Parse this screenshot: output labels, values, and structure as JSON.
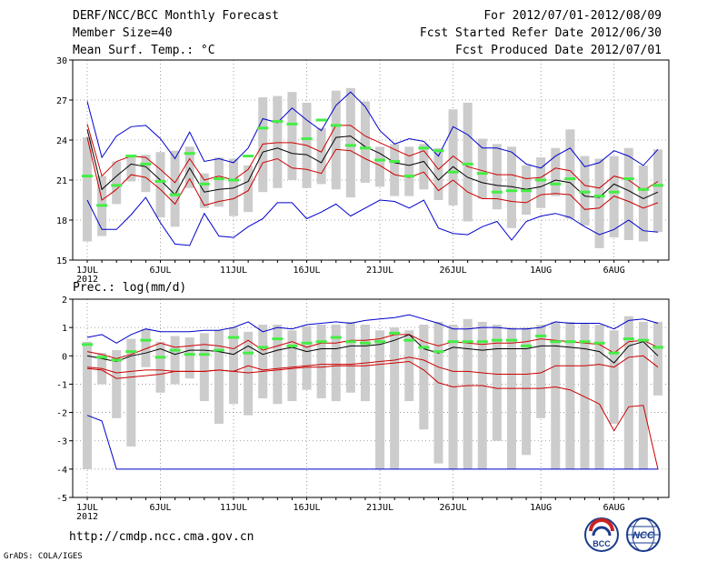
{
  "header": {
    "title": "DERF/NCC/BCC Monthly Forecast",
    "member_size": "Member Size=40",
    "variable": "Mean Surf. Temp.: °C",
    "period": "For 2012/07/01-2012/08/09",
    "fcst_started": "Fcst Started Refer Date 2012/06/30",
    "fcst_produced": "Fcst Produced Date 2012/07/01"
  },
  "footer": {
    "url": "http://cmdp.ncc.cma.gov.cn",
    "credit": "GrADS: COLA/IGES"
  },
  "logos": [
    {
      "name": "bcc-logo",
      "text": "BCC"
    },
    {
      "name": "ncc-logo",
      "text": "NCC"
    }
  ],
  "colors": {
    "box": "#cccccc",
    "envelope": "#0000cc",
    "spread": "#cc0000",
    "mean": "#000000",
    "obs": "#44ee44",
    "grid": "#888888"
  },
  "chart_data": [
    {
      "name": "temperature",
      "type": "box-envelope",
      "ylabel": "Mean Surf. Temp.: °C",
      "ylim": [
        15,
        30
      ],
      "yticks": [
        15,
        18,
        21,
        24,
        27,
        30
      ],
      "ytick_labels": [
        "15",
        "18",
        "21",
        "24",
        "27",
        "30"
      ],
      "x_days": 40,
      "xticks": [
        1,
        6,
        11,
        16,
        21,
        26,
        32,
        37
      ],
      "xtick_labels": [
        "1JUL",
        "6JUL",
        "11JUL",
        "16JUL",
        "21JUL",
        "26JUL",
        "1AUG",
        "6AUG"
      ],
      "year_label": "2012",
      "series": {
        "max": [
          26.9,
          22.7,
          24.3,
          25,
          25.1,
          24.1,
          22.6,
          24.6,
          22.4,
          22.6,
          22.3,
          23.4,
          25.6,
          25.3,
          26.4,
          25.5,
          24.7,
          26.6,
          27.6,
          26.5,
          24.7,
          23.7,
          24.1,
          23.9,
          22.8,
          25.0,
          24.4,
          23.4,
          23.4,
          23.1,
          22.2,
          21.9,
          22.8,
          23.4,
          22.0,
          22.3,
          23.2,
          22.8,
          22.1,
          23.3
        ],
        "upper": [
          25.2,
          21.3,
          22.4,
          22.8,
          22.7,
          21.8,
          20.8,
          22.6,
          21.0,
          21.3,
          21.0,
          21.8,
          23.7,
          23.8,
          23.8,
          23.6,
          23.1,
          25.1,
          25.1,
          24.3,
          23.8,
          23.3,
          22.8,
          23.2,
          21.8,
          22.8,
          22.0,
          21.7,
          21.4,
          21.4,
          21.1,
          21.2,
          21.9,
          21.7,
          20.6,
          20.4,
          21.3,
          21.0,
          20.2,
          20.9
        ],
        "mean": [
          24.8,
          20.3,
          21.3,
          22.2,
          22.0,
          21.0,
          19.9,
          21.9,
          20.1,
          20.3,
          20.4,
          20.9,
          23.1,
          23.4,
          23.0,
          22.9,
          22.3,
          24.2,
          24.3,
          23.5,
          23.0,
          22.3,
          22.1,
          22.4,
          21.0,
          22.0,
          21.2,
          20.8,
          20.6,
          20.5,
          20.3,
          20.5,
          21.0,
          20.8,
          19.8,
          19.7,
          20.7,
          20.2,
          19.6,
          20.1
        ],
        "lower": [
          24.2,
          19.5,
          20.3,
          21.4,
          21.2,
          20.3,
          19.2,
          21.1,
          19.1,
          19.4,
          19.6,
          20.2,
          22.3,
          22.6,
          21.9,
          21.8,
          21.5,
          23.3,
          23.2,
          22.6,
          22.1,
          21.4,
          21.2,
          21.6,
          20.2,
          21.0,
          20.1,
          19.6,
          19.6,
          19.4,
          19.3,
          19.9,
          20.0,
          19.9,
          18.8,
          18.9,
          19.8,
          19.4,
          18.9,
          19.3
        ],
        "min": [
          19.5,
          17.3,
          17.3,
          18.4,
          19.7,
          17.8,
          16.2,
          16.1,
          18.5,
          16.8,
          16.7,
          17.5,
          18.1,
          19.3,
          19.3,
          18.1,
          18.6,
          19.2,
          18.3,
          18.9,
          19.5,
          19.4,
          18.9,
          19.5,
          17.4,
          17.0,
          16.9,
          17.5,
          17.9,
          16.5,
          17.9,
          18.3,
          18.5,
          18.2,
          17.5,
          16.9,
          17.3,
          18.0,
          17.2,
          17.1
        ],
        "box_top": [
          24.2,
          21.3,
          22.4,
          22.9,
          22.9,
          23.1,
          23.2,
          23.5,
          21.5,
          22.7,
          22.6,
          22.1,
          27.2,
          27.3,
          27.6,
          26.8,
          24.9,
          27.7,
          27.9,
          26.9,
          23.5,
          23.7,
          23.5,
          23.7,
          23.4,
          26.3,
          26.8,
          24.1,
          23.7,
          23.5,
          22.1,
          22.7,
          23.4,
          24.8,
          22.8,
          22.6,
          22.8,
          23.4,
          22.1,
          23.3
        ],
        "box_bot": [
          16.4,
          16.8,
          19.2,
          20.9,
          20.1,
          18.2,
          17.5,
          20.4,
          18.9,
          19.0,
          18.3,
          18.6,
          20.1,
          20.4,
          21.0,
          20.4,
          20.7,
          20.3,
          19.7,
          20.8,
          20.5,
          19.8,
          19.8,
          20.3,
          19.5,
          19.1,
          17.9,
          19.6,
          18.8,
          17.4,
          18.4,
          18.9,
          19.8,
          18.1,
          17.6,
          15.9,
          16.7,
          16.5,
          16.4,
          17.1
        ],
        "obs": [
          21.3,
          19.1,
          20.6,
          22.8,
          22.2,
          20.9,
          19.9,
          23.0,
          20.7,
          21.1,
          21.0,
          22.8,
          24.9,
          25.4,
          25.2,
          24.1,
          25.5,
          25.1,
          23.6,
          23.4,
          22.5,
          22.4,
          21.3,
          23.4,
          23.2,
          21.6,
          22.2,
          21.5,
          20.1,
          20.2,
          20.2,
          21.0,
          20.7,
          21.1,
          20.1,
          19.8,
          20.1,
          21.1,
          20.3,
          20.6
        ]
      }
    },
    {
      "name": "precipitation",
      "type": "box-envelope",
      "ylabel": "Prec.: log(mm/d)",
      "ylim": [
        -5,
        2
      ],
      "yticks": [
        -5,
        -4,
        -3,
        -2,
        -1,
        0,
        1,
        2
      ],
      "ytick_labels": [
        "-5",
        "-4",
        "-3",
        "-2",
        "-1",
        "0",
        "1",
        "2"
      ],
      "x_days": 40,
      "xticks": [
        1,
        6,
        11,
        16,
        21,
        26,
        32,
        37
      ],
      "xtick_labels": [
        "1JUL",
        "6JUL",
        "11JUL",
        "16JUL",
        "21JUL",
        "26JUL",
        "1AUG",
        "6AUG"
      ],
      "year_label": "2012",
      "series": {
        "max": [
          0.65,
          0.75,
          0.45,
          0.75,
          0.95,
          0.85,
          0.85,
          0.85,
          0.9,
          0.9,
          1.0,
          1.2,
          0.85,
          1.0,
          0.95,
          1.1,
          1.15,
          1.2,
          1.15,
          1.25,
          1.3,
          1.35,
          1.45,
          1.3,
          1.15,
          0.95,
          0.95,
          1.0,
          1.0,
          0.95,
          0.95,
          1.0,
          1.2,
          1.15,
          1.15,
          1.15,
          0.95,
          1.25,
          1.3,
          1.15
        ],
        "upper": [
          0.15,
          0.05,
          -0.1,
          0.05,
          0.25,
          0.45,
          0.3,
          0.35,
          0.4,
          0.35,
          0.25,
          0.55,
          0.2,
          0.35,
          0.5,
          0.3,
          0.45,
          0.45,
          0.55,
          0.55,
          0.6,
          0.75,
          0.75,
          0.5,
          0.35,
          0.5,
          0.45,
          0.4,
          0.45,
          0.45,
          0.5,
          0.6,
          0.55,
          0.5,
          0.45,
          0.4,
          0.1,
          0.5,
          0.55,
          0.3
        ],
        "mean": [
          0.0,
          -0.1,
          -0.2,
          0.0,
          0.1,
          0.25,
          0.05,
          0.2,
          0.2,
          0.15,
          0.05,
          0.35,
          0.05,
          0.2,
          0.3,
          0.15,
          0.25,
          0.25,
          0.35,
          0.35,
          0.4,
          0.55,
          0.75,
          0.25,
          0.1,
          0.3,
          0.25,
          0.2,
          0.25,
          0.25,
          0.25,
          0.35,
          0.35,
          0.3,
          0.25,
          0.15,
          -0.25,
          0.35,
          0.5,
          0.0
        ],
        "lower": [
          -0.4,
          -0.45,
          -0.6,
          -0.55,
          -0.5,
          -0.5,
          -0.55,
          -0.55,
          -0.55,
          -0.5,
          -0.55,
          -0.35,
          -0.5,
          -0.45,
          -0.4,
          -0.35,
          -0.3,
          -0.3,
          -0.3,
          -0.25,
          -0.2,
          -0.15,
          -0.05,
          -0.15,
          -0.4,
          -0.55,
          -0.55,
          -0.6,
          -0.65,
          -0.65,
          -0.65,
          -0.6,
          -0.35,
          -0.35,
          -0.35,
          -0.3,
          -0.4,
          -0.05,
          0.0,
          -0.4
        ],
        "min": [
          -2.1,
          -2.3,
          -4.0,
          -4.0,
          -4.0,
          -4.0,
          -4.0,
          -4.0,
          -4.0,
          -4.0,
          -4.0,
          -4.0,
          -4.0,
          -4.0,
          -4.0,
          -4.0,
          -4.0,
          -4.0,
          -4.0,
          -4.0,
          -4.0,
          -4.0,
          -4.0,
          -4.0,
          -4.0,
          -4.0,
          -4.0,
          -4.0,
          -4.0,
          -4.0,
          -4.0,
          -4.0,
          -4.0,
          -4.0,
          -4.0,
          -4.0,
          -4.0,
          -4.0,
          -4.0,
          -4.0
        ],
        "spread_low": [
          -0.45,
          -0.5,
          -0.8,
          -0.75,
          -0.7,
          -0.65,
          -0.55,
          -0.55,
          -0.55,
          -0.5,
          -0.55,
          -0.6,
          -0.55,
          -0.5,
          -0.45,
          -0.4,
          -0.4,
          -0.35,
          -0.35,
          -0.35,
          -0.3,
          -0.25,
          -0.2,
          -0.5,
          -0.95,
          -1.1,
          -1.05,
          -1.05,
          -1.15,
          -1.15,
          -1.15,
          -1.15,
          -1.1,
          -1.2,
          -1.45,
          -1.7,
          -2.65,
          -1.8,
          -1.75,
          -4.0
        ],
        "box_top": [
          0.5,
          0.1,
          0.2,
          0.6,
          0.95,
          0.5,
          0.7,
          0.65,
          0.8,
          0.9,
          1.0,
          0.85,
          1.1,
          1.1,
          0.9,
          1.05,
          1.1,
          1.1,
          1.2,
          1.1,
          0.9,
          1.0,
          0.9,
          1.1,
          1.2,
          1.1,
          1.3,
          1.2,
          1.1,
          1.0,
          1.0,
          1.1,
          1.2,
          1.2,
          1.15,
          1.1,
          0.9,
          1.4,
          1.2,
          1.2
        ],
        "box_bot": [
          -4.0,
          -1.0,
          -2.2,
          -3.2,
          -0.4,
          -1.3,
          -1.0,
          -0.8,
          -1.6,
          -2.4,
          -1.7,
          -2.1,
          -1.5,
          -1.7,
          -1.6,
          -1.2,
          -1.5,
          -1.6,
          -1.3,
          -1.6,
          -4.0,
          -4.0,
          -1.6,
          -2.6,
          -3.8,
          -4.0,
          -4.0,
          -4.0,
          -3.0,
          -4.0,
          -3.5,
          -2.2,
          -4.0,
          -4.0,
          -4.0,
          -4.0,
          -2.4,
          -4.0,
          -4.0,
          -1.4
        ],
        "obs": [
          0.4,
          -0.05,
          -0.15,
          0.15,
          0.55,
          -0.05,
          0.2,
          0.05,
          0.05,
          0.2,
          0.65,
          0.1,
          0.3,
          0.6,
          0.35,
          0.45,
          0.5,
          0.65,
          0.5,
          0.45,
          0.5,
          0.8,
          0.55,
          0.3,
          0.15,
          0.5,
          0.5,
          0.5,
          0.55,
          0.55,
          0.35,
          0.7,
          0.5,
          0.5,
          0.5,
          0.45,
          0.1,
          0.6,
          0.55,
          0.3
        ]
      }
    }
  ]
}
